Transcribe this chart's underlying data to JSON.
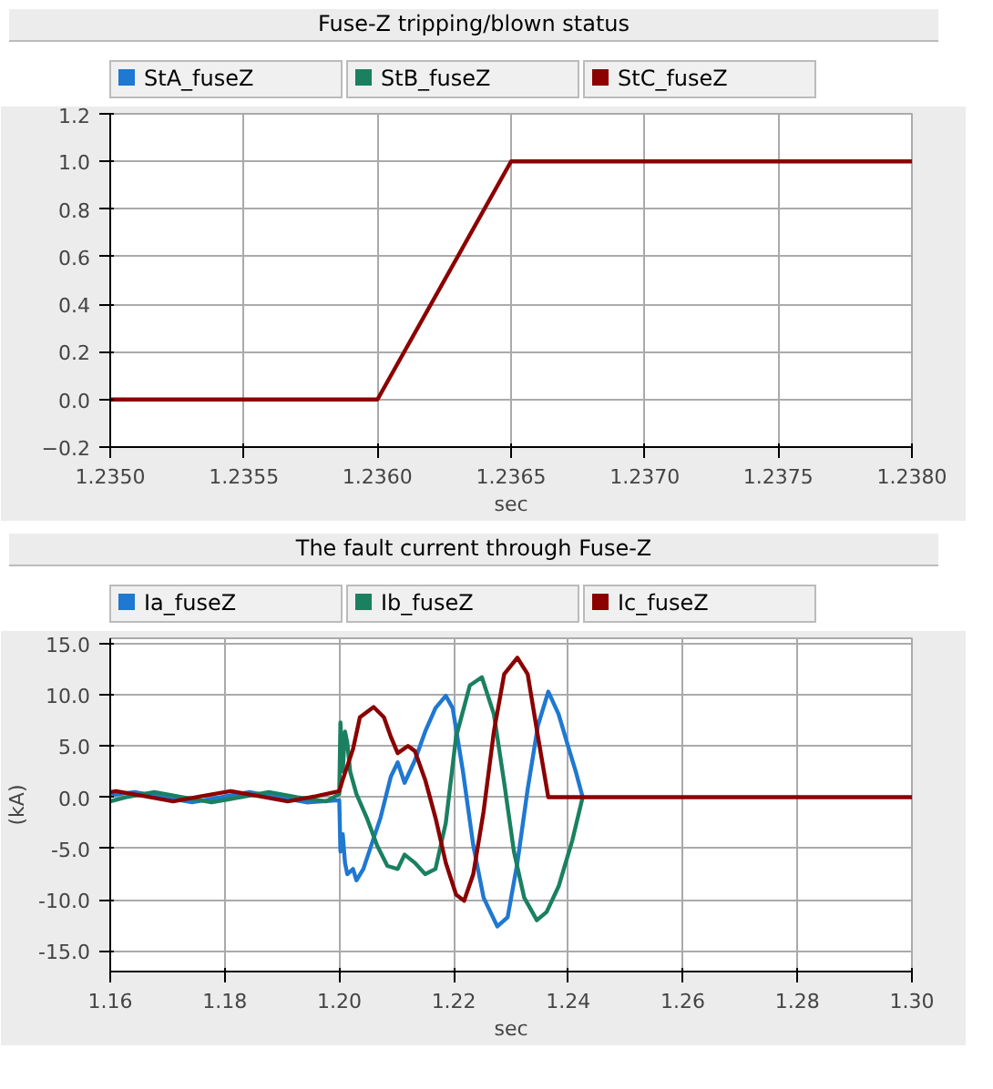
{
  "chart_data": [
    {
      "type": "line",
      "title": "Fuse-Z tripping/blown status",
      "xlabel": "sec",
      "legend": "top",
      "grid": true,
      "line_style": "solid",
      "marker": "none",
      "xlim": [
        1.235,
        1.238
      ],
      "xticks": [
        {
          "value": 1.235,
          "label": "1.2350"
        },
        {
          "value": 1.2355,
          "label": "1.2355"
        },
        {
          "value": 1.236,
          "label": "1.2360"
        },
        {
          "value": 1.2365,
          "label": "1.2365"
        },
        {
          "value": 1.237,
          "label": "1.2370"
        },
        {
          "value": 1.2375,
          "label": "1.2375"
        },
        {
          "value": 1.238,
          "label": "1.2380"
        }
      ],
      "ylim": [
        -0.2,
        1.2
      ],
      "yticks": [
        -0.2,
        0.2,
        0.4,
        0.6,
        0.8,
        {
          "value": 0,
          "label": "0.0"
        },
        {
          "value": 1,
          "label": "1.0"
        },
        1.2
      ],
      "series": [
        {
          "name": "StA_fuseZ",
          "color": "#1f78d1"
        },
        {
          "name": "StB_fuseZ",
          "color": "#1a8060"
        },
        {
          "name": "StC_fuseZ",
          "color": "#8b0000",
          "x": [
            1.235,
            1.236,
            1.2365,
            1.238
          ],
          "values": [
            0,
            0,
            1,
            1
          ]
        }
      ]
    },
    {
      "type": "line",
      "title": "The fault current through Fuse-Z",
      "xlabel": "sec",
      "ylabel": "(kA)",
      "legend": "top",
      "grid": true,
      "line_style": "solid",
      "marker": "none",
      "xlim": [
        1.16,
        1.3
      ],
      "xticks": [
        1.16,
        1.18,
        {
          "value": 1.2,
          "label": "1.20"
        },
        1.22,
        1.24,
        1.26,
        1.28,
        {
          "value": 1.3,
          "label": "1.30"
        }
      ],
      "ylim": [
        -17,
        15.5
      ],
      "yticks": [
        {
          "value": -15,
          "label": "-15.0"
        },
        {
          "value": -10,
          "label": "-10.0"
        },
        {
          "value": -5,
          "label": "-5.0"
        },
        {
          "value": 0,
          "label": "0.0"
        },
        {
          "value": 5,
          "label": "5.0"
        },
        {
          "value": 10,
          "label": "10.0"
        },
        {
          "value": 15,
          "label": "15.0"
        }
      ],
      "series": [
        {
          "name": "Ia_fuseZ",
          "color": "#1f78d1",
          "x": [
            1.16,
            1.1643,
            1.1693,
            1.1743,
            1.1793,
            1.1843,
            1.1893,
            1.1943,
            1.1993,
            1.2,
            1.2002,
            1.2006,
            1.201,
            1.2014,
            1.2024,
            1.203,
            1.2042,
            1.2054,
            1.2072,
            1.209,
            1.2102,
            1.2114,
            1.2132,
            1.215,
            1.2168,
            1.2186,
            1.2198,
            1.2216,
            1.2234,
            1.2252,
            1.2276,
            1.2294,
            1.2311,
            1.2329,
            1.2347,
            1.2365,
            1.2383,
            1.2401,
            1.2413,
            1.2425
          ],
          "values": [
            0.2,
            0.5,
            0,
            -0.5,
            0,
            0.5,
            0,
            -0.5,
            -0.3,
            -0.3,
            -5.3,
            -3.6,
            -6.4,
            -7.5,
            -7.0,
            -8.1,
            -7.0,
            -5.0,
            -2.0,
            2.0,
            3.4,
            1.4,
            3.6,
            6.4,
            8.7,
            9.9,
            8.7,
            2.5,
            -4.7,
            -9.8,
            -12.6,
            -11.7,
            -6.4,
            0.8,
            7.0,
            10.3,
            8.1,
            4.7,
            2.5,
            0
          ]
        },
        {
          "name": "Ib_fuseZ",
          "color": "#1a8060",
          "x": [
            1.16,
            1.1627,
            1.1677,
            1.1727,
            1.1777,
            1.1827,
            1.1877,
            1.1927,
            1.1977,
            1.2,
            1.2002,
            1.2006,
            1.201,
            1.2014,
            1.2019,
            1.203,
            1.2048,
            1.2066,
            1.2084,
            1.2102,
            1.2114,
            1.2132,
            1.215,
            1.2168,
            1.2186,
            1.2204,
            1.2228,
            1.2249,
            1.227,
            1.2288,
            1.2305,
            1.2323,
            1.2345,
            1.2362,
            1.2383,
            1.2407,
            1.2425
          ],
          "values": [
            -0.4,
            0,
            0.5,
            0,
            -0.5,
            0,
            0.5,
            0,
            -0.4,
            0.3,
            7.3,
            2.5,
            6.4,
            5.3,
            2.5,
            0.3,
            -2.0,
            -4.7,
            -6.7,
            -7.0,
            -5.6,
            -6.4,
            -7.5,
            -7.0,
            -2.5,
            5.9,
            10.9,
            11.7,
            8.1,
            1.4,
            -5.3,
            -9.8,
            -12.0,
            -11.2,
            -8.7,
            -4.2,
            0
          ]
        },
        {
          "name": "Ic_fuseZ",
          "color": "#8b0000",
          "x": [
            1.16,
            1.161,
            1.166,
            1.171,
            1.176,
            1.181,
            1.186,
            1.191,
            1.196,
            1.2,
            1.2006,
            1.2024,
            1.2036,
            1.206,
            1.2078,
            1.209,
            1.2102,
            1.212,
            1.2132,
            1.215,
            1.2168,
            1.2186,
            1.2204,
            1.2218,
            1.2234,
            1.2252,
            1.227,
            1.2288,
            1.2311,
            1.2329,
            1.2347,
            1.2365,
            1.3
          ],
          "values": [
            0.5,
            0.6,
            0.1,
            -0.4,
            0.1,
            0.6,
            0.1,
            -0.4,
            0.1,
            0.6,
            1.7,
            4.7,
            7.8,
            8.8,
            7.8,
            5.9,
            4.3,
            5.0,
            4.5,
            1.7,
            -2.0,
            -6.4,
            -9.5,
            -10.1,
            -7.5,
            -1.4,
            6.4,
            12.0,
            13.6,
            12.0,
            5.9,
            0,
            0
          ]
        }
      ]
    }
  ]
}
